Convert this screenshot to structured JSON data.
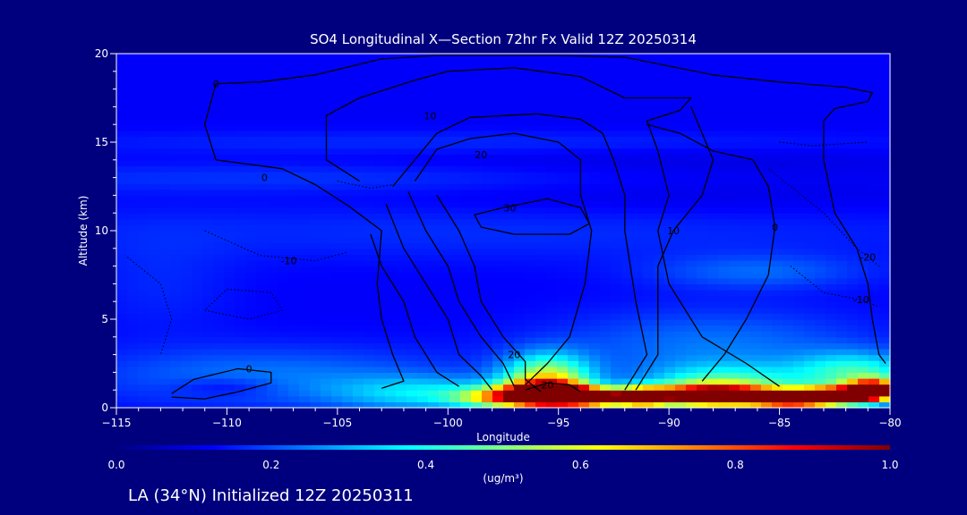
{
  "colors": {
    "background": "#00007f",
    "text": "#ffffff",
    "contour": "#000000",
    "colormap": [
      "#00007f",
      "#0000ff",
      "#0080ff",
      "#00ffff",
      "#80ff80",
      "#ffff00",
      "#ff8000",
      "#ff0000",
      "#800000"
    ]
  },
  "chart_data": {
    "type": "heatmap",
    "title": "SO4 Longitudinal X—Section 72hr  Fx Valid 12Z 20250314",
    "xlabel": "Longitude",
    "ylabel": "Altitude (km)",
    "xlim": [
      -115,
      -80
    ],
    "ylim": [
      0,
      20
    ],
    "x_ticks": [
      -115,
      -110,
      -105,
      -100,
      -95,
      -90,
      -85,
      -80
    ],
    "x_tick_labels": [
      "−115",
      "−110",
      "−105",
      "−100",
      "−95",
      "−90",
      "−85",
      "−80"
    ],
    "y_ticks": [
      0,
      5,
      10,
      15,
      20
    ],
    "y_tick_labels": [
      "0",
      "5",
      "10",
      "15",
      "20"
    ],
    "colorbar": {
      "range": [
        0.0,
        1.0
      ],
      "ticks": [
        0.0,
        0.2,
        0.4,
        0.6,
        0.8,
        1.0
      ],
      "tick_labels": [
        "0.0",
        "0.2",
        "0.4",
        "0.6",
        "0.8",
        "1.0"
      ],
      "units": "(ug/m³)"
    },
    "background_value": 0.12,
    "features": [
      {
        "lon": -95.5,
        "alt": 0.8,
        "value": 1.0,
        "sx": 1.2,
        "sy": 0.45
      },
      {
        "lon": -95.5,
        "alt": 1.6,
        "value": 0.45,
        "sx": 1.4,
        "sy": 1.0
      },
      {
        "lon": -93.5,
        "alt": 0.6,
        "value": 0.9,
        "sx": 1.2,
        "sy": 0.35
      },
      {
        "lon": -91.2,
        "alt": 0.6,
        "value": 0.6,
        "sx": 0.8,
        "sy": 0.4
      },
      {
        "lon": -88.0,
        "alt": 0.7,
        "value": 1.0,
        "sx": 2.0,
        "sy": 0.4
      },
      {
        "lon": -87.5,
        "alt": 1.3,
        "value": 0.3,
        "sx": 2.5,
        "sy": 0.8
      },
      {
        "lon": -84.5,
        "alt": 0.5,
        "value": 0.9,
        "sx": 1.2,
        "sy": 0.3
      },
      {
        "lon": -82.5,
        "alt": 0.7,
        "value": 0.85,
        "sx": 1.2,
        "sy": 0.35
      },
      {
        "lon": -80.8,
        "alt": 1.0,
        "value": 1.0,
        "sx": 0.8,
        "sy": 0.4
      },
      {
        "lon": -81.5,
        "alt": 2.0,
        "value": 0.28,
        "sx": 2.0,
        "sy": 0.8
      },
      {
        "lon": -97.5,
        "alt": 0.6,
        "value": 0.45,
        "sx": 1.5,
        "sy": 0.4
      },
      {
        "lon": -101.0,
        "alt": 0.8,
        "value": 0.2,
        "sx": 3.0,
        "sy": 0.7
      },
      {
        "lon": -88.0,
        "alt": 3.5,
        "value": 0.12,
        "sx": 5.0,
        "sy": 1.5
      },
      {
        "lon": -108.0,
        "alt": 1.8,
        "value": 0.12,
        "sx": 6.0,
        "sy": 1.2
      },
      {
        "lon": -110.0,
        "alt": 1.2,
        "value": -0.07,
        "sx": 1.6,
        "sy": 0.35
      },
      {
        "lon": -86.0,
        "alt": 7.7,
        "value": 0.1,
        "sx": 3.5,
        "sy": 0.7
      },
      {
        "lon": -104.0,
        "alt": 13.0,
        "value": 0.06,
        "sx": 15.0,
        "sy": 0.6
      },
      {
        "lon": -98.0,
        "alt": 15.0,
        "value": 0.05,
        "sx": 15.0,
        "sy": 0.5
      },
      {
        "lon": -97.0,
        "alt": 10.0,
        "value": 0.05,
        "sx": 18.0,
        "sy": 1.2
      },
      {
        "lon": -90.0,
        "alt": 13.0,
        "value": -0.04,
        "sx": 10.0,
        "sy": 1.5
      },
      {
        "lon": -113.0,
        "alt": 7.0,
        "value": 0.04,
        "sx": 2.5,
        "sy": 2.0
      }
    ],
    "contours": [
      {
        "label": "0",
        "style": "solid",
        "label_at": [
          -108.3,
          13.0
        ],
        "points": [
          [
            -110.5,
            18.3
          ],
          [
            -108.5,
            18.4
          ],
          [
            -106,
            18.8
          ],
          [
            -103,
            19.7
          ],
          [
            -100.5,
            19.9
          ],
          [
            -98,
            19.9
          ],
          [
            -95,
            19.9
          ],
          [
            -92,
            19.8
          ],
          [
            -90,
            19.3
          ],
          [
            -88,
            18.8
          ],
          [
            -85,
            18.4
          ],
          [
            -82,
            18.1
          ],
          [
            -80.8,
            17.8
          ],
          [
            -81,
            17.3
          ],
          [
            -82.5,
            16.9
          ],
          [
            -83,
            16.2
          ],
          [
            -83,
            14
          ],
          [
            -82.5,
            11
          ],
          [
            -81.5,
            9
          ],
          [
            -81,
            7
          ],
          [
            -80.8,
            5
          ],
          [
            -80.5,
            3
          ],
          [
            -80.2,
            2.5
          ]
        ]
      },
      {
        "label": "0",
        "style": "solid",
        "label_at": [
          -110.5,
          18.3
        ],
        "points": [
          [
            -110.5,
            18.3
          ],
          [
            -111,
            16
          ],
          [
            -110.5,
            14
          ],
          [
            -107.5,
            13.5
          ],
          [
            -106,
            12.6
          ],
          [
            -104.5,
            11.4
          ],
          [
            -103,
            10
          ],
          [
            -103.2,
            7
          ],
          [
            -103,
            5
          ],
          [
            -102.5,
            3
          ],
          [
            -102,
            1.5
          ],
          [
            -103,
            1.1
          ]
        ]
      },
      {
        "label": "10",
        "style": "solid",
        "label_at": [
          -100.8,
          16.5
        ],
        "points": [
          [
            -104,
            12.8
          ],
          [
            -105.5,
            14
          ],
          [
            -105.5,
            16.5
          ],
          [
            -104,
            17.5
          ],
          [
            -101.5,
            18.5
          ],
          [
            -100,
            19.0
          ],
          [
            -97,
            19.2
          ],
          [
            -94,
            18.7
          ],
          [
            -92,
            17.5
          ],
          [
            -89,
            17.5
          ],
          [
            -89.5,
            16.8
          ],
          [
            -91,
            16.2
          ],
          [
            -90.5,
            14.5
          ],
          [
            -90,
            12
          ],
          [
            -90.5,
            10
          ],
          [
            -90,
            7
          ],
          [
            -88.5,
            4
          ],
          [
            -86.5,
            2.5
          ],
          [
            -85,
            1.2
          ]
        ]
      },
      {
        "label": "0",
        "style": "solid",
        "label_at": [
          -85.2,
          10.2
        ],
        "points": [
          [
            -91,
            16
          ],
          [
            -89.5,
            15.5
          ],
          [
            -88,
            14.5
          ],
          [
            -86.2,
            14
          ],
          [
            -85.5,
            12.5
          ],
          [
            -85.2,
            10.2
          ],
          [
            -85.5,
            7.5
          ],
          [
            -86.5,
            5
          ],
          [
            -87.5,
            3
          ],
          [
            -88.5,
            1.5
          ]
        ]
      },
      {
        "label": "",
        "style": "solid",
        "label_at": [
          -102,
          12
        ],
        "points": [
          [
            -102.5,
            12.5
          ],
          [
            -101.5,
            14
          ],
          [
            -100.5,
            15.5
          ],
          [
            -99,
            16.4
          ],
          [
            -96,
            16.6
          ],
          [
            -94,
            16.3
          ],
          [
            -93,
            15.5
          ],
          [
            -92.5,
            14
          ],
          [
            -92,
            12
          ],
          [
            -92,
            10
          ],
          [
            -91.5,
            6
          ],
          [
            -91,
            3
          ],
          [
            -92,
            1.0
          ]
        ]
      },
      {
        "label": "20",
        "style": "solid",
        "label_at": [
          -98.5,
          14.3
        ],
        "points": [
          [
            -101.5,
            12.8
          ],
          [
            -100.5,
            14.6
          ],
          [
            -99,
            15.2
          ],
          [
            -97,
            15.5
          ],
          [
            -95,
            15.0
          ],
          [
            -94,
            14.0
          ],
          [
            -94,
            12
          ],
          [
            -93.5,
            10
          ],
          [
            -93.8,
            7
          ],
          [
            -94.5,
            4
          ],
          [
            -95.5,
            2.5
          ],
          [
            -96.5,
            1.3
          ]
        ]
      },
      {
        "label": "30",
        "style": "solid",
        "label_at": [
          -97.2,
          11.3
        ],
        "points": [
          [
            -97.5,
            11.3
          ],
          [
            -95.5,
            11.8
          ],
          [
            -94,
            11.3
          ],
          [
            -93.6,
            10.4
          ],
          [
            -94.5,
            9.8
          ],
          [
            -97,
            9.8
          ],
          [
            -98.5,
            10.2
          ],
          [
            -98.8,
            10.9
          ],
          [
            -97.5,
            11.3
          ]
        ]
      },
      {
        "label": "",
        "style": "solid",
        "label_at": [
          -103,
          10
        ],
        "points": [
          [
            -103.5,
            9.8
          ],
          [
            -103,
            8
          ],
          [
            -102,
            6
          ],
          [
            -101.5,
            4
          ],
          [
            -100.5,
            2
          ],
          [
            -99.5,
            1.2
          ]
        ]
      },
      {
        "label": "",
        "style": "solid",
        "label_at": [
          -102.5,
          11
        ],
        "points": [
          [
            -102.8,
            11.5
          ],
          [
            -102,
            9
          ],
          [
            -101,
            7
          ],
          [
            -100,
            5
          ],
          [
            -99.5,
            3
          ],
          [
            -98.5,
            1.8
          ],
          [
            -98,
            1.0
          ]
        ]
      },
      {
        "label": "",
        "style": "solid",
        "label_at": [
          -101.5,
          12
        ],
        "points": [
          [
            -101.8,
            12.2
          ],
          [
            -101,
            10
          ],
          [
            -100,
            8
          ],
          [
            -99.5,
            6
          ],
          [
            -98.5,
            4
          ],
          [
            -97.5,
            2.5
          ],
          [
            -97,
            1.2
          ]
        ]
      },
      {
        "label": "20",
        "style": "solid",
        "label_at": [
          -97.0,
          3.0
        ],
        "points": [
          [
            -100.5,
            12
          ],
          [
            -99.5,
            10
          ],
          [
            -98.8,
            8
          ],
          [
            -98.5,
            6
          ],
          [
            -97.5,
            4
          ],
          [
            -96.5,
            2.6
          ],
          [
            -96.5,
            1.6
          ],
          [
            -95.8,
            0.9
          ]
        ]
      },
      {
        "label": "20",
        "style": "solid",
        "label_at": [
          -95.5,
          1.3
        ],
        "points": [
          [
            -96.5,
            1.0
          ],
          [
            -95.5,
            1.4
          ],
          [
            -94.5,
            1.3
          ],
          [
            -94,
            0.9
          ]
        ]
      },
      {
        "label": "10",
        "style": "solid",
        "label_at": [
          -89.8,
          10.0
        ],
        "points": [
          [
            -89,
            17
          ],
          [
            -88,
            14
          ],
          [
            -88.5,
            12
          ],
          [
            -89.8,
            10.0
          ],
          [
            -90.5,
            8
          ],
          [
            -90.5,
            6
          ],
          [
            -90.5,
            3
          ],
          [
            -91.5,
            1
          ]
        ]
      },
      {
        "label": "-10",
        "style": "dotted",
        "label_at": [
          -107.2,
          8.3
        ],
        "points": [
          [
            -111,
            10
          ],
          [
            -108.5,
            8.6
          ],
          [
            -106,
            8.3
          ],
          [
            -104.5,
            8.8
          ]
        ]
      },
      {
        "label": "-10",
        "style": "dotted",
        "label_at": [
          -81.3,
          6.1
        ],
        "points": [
          [
            -84.5,
            8
          ],
          [
            -83,
            6.5
          ],
          [
            -81.3,
            6.1
          ],
          [
            -80.5,
            5.7
          ]
        ]
      },
      {
        "label": "-20",
        "style": "dotted",
        "label_at": [
          -81.0,
          8.5
        ],
        "points": [
          [
            -85.5,
            13.5
          ],
          [
            -84.5,
            12.5
          ],
          [
            -83,
            11
          ],
          [
            -81.5,
            9
          ],
          [
            -80.5,
            8
          ]
        ]
      },
      {
        "label": "",
        "style": "dotted",
        "label_at": [
          -113,
          7
        ],
        "points": [
          [
            -114.5,
            8.5
          ],
          [
            -113,
            7
          ],
          [
            -112.5,
            5
          ],
          [
            -113,
            3
          ]
        ]
      },
      {
        "label": "",
        "style": "dotted",
        "label_at": [
          -84,
          14.5
        ],
        "points": [
          [
            -85,
            15
          ],
          [
            -83.5,
            14.8
          ],
          [
            -81,
            15
          ]
        ]
      },
      {
        "label": "",
        "style": "dotted",
        "label_at": [
          -109,
          5
        ],
        "points": [
          [
            -111,
            5.5
          ],
          [
            -109,
            5
          ],
          [
            -107.5,
            5.5
          ],
          [
            -108,
            6.5
          ],
          [
            -110,
            6.7
          ],
          [
            -111,
            5.5
          ]
        ]
      },
      {
        "label": "",
        "style": "dotted",
        "label_at": [
          -103,
          12.5
        ],
        "points": [
          [
            -105,
            12.8
          ],
          [
            -103.5,
            12.4
          ],
          [
            -102.5,
            12.6
          ]
        ]
      },
      {
        "label": "0",
        "style": "solid",
        "label_at": [
          -109.0,
          2.2
        ],
        "points": [
          [
            -112.5,
            0.8
          ],
          [
            -111.5,
            1.6
          ],
          [
            -109.5,
            2.2
          ],
          [
            -108,
            2.0
          ],
          [
            -108,
            1.4
          ],
          [
            -109.5,
            0.9
          ],
          [
            -111,
            0.5
          ],
          [
            -112.5,
            0.6
          ]
        ]
      }
    ]
  },
  "footer": {
    "text": "LA (34°N) Initialized 12Z 20250311"
  }
}
